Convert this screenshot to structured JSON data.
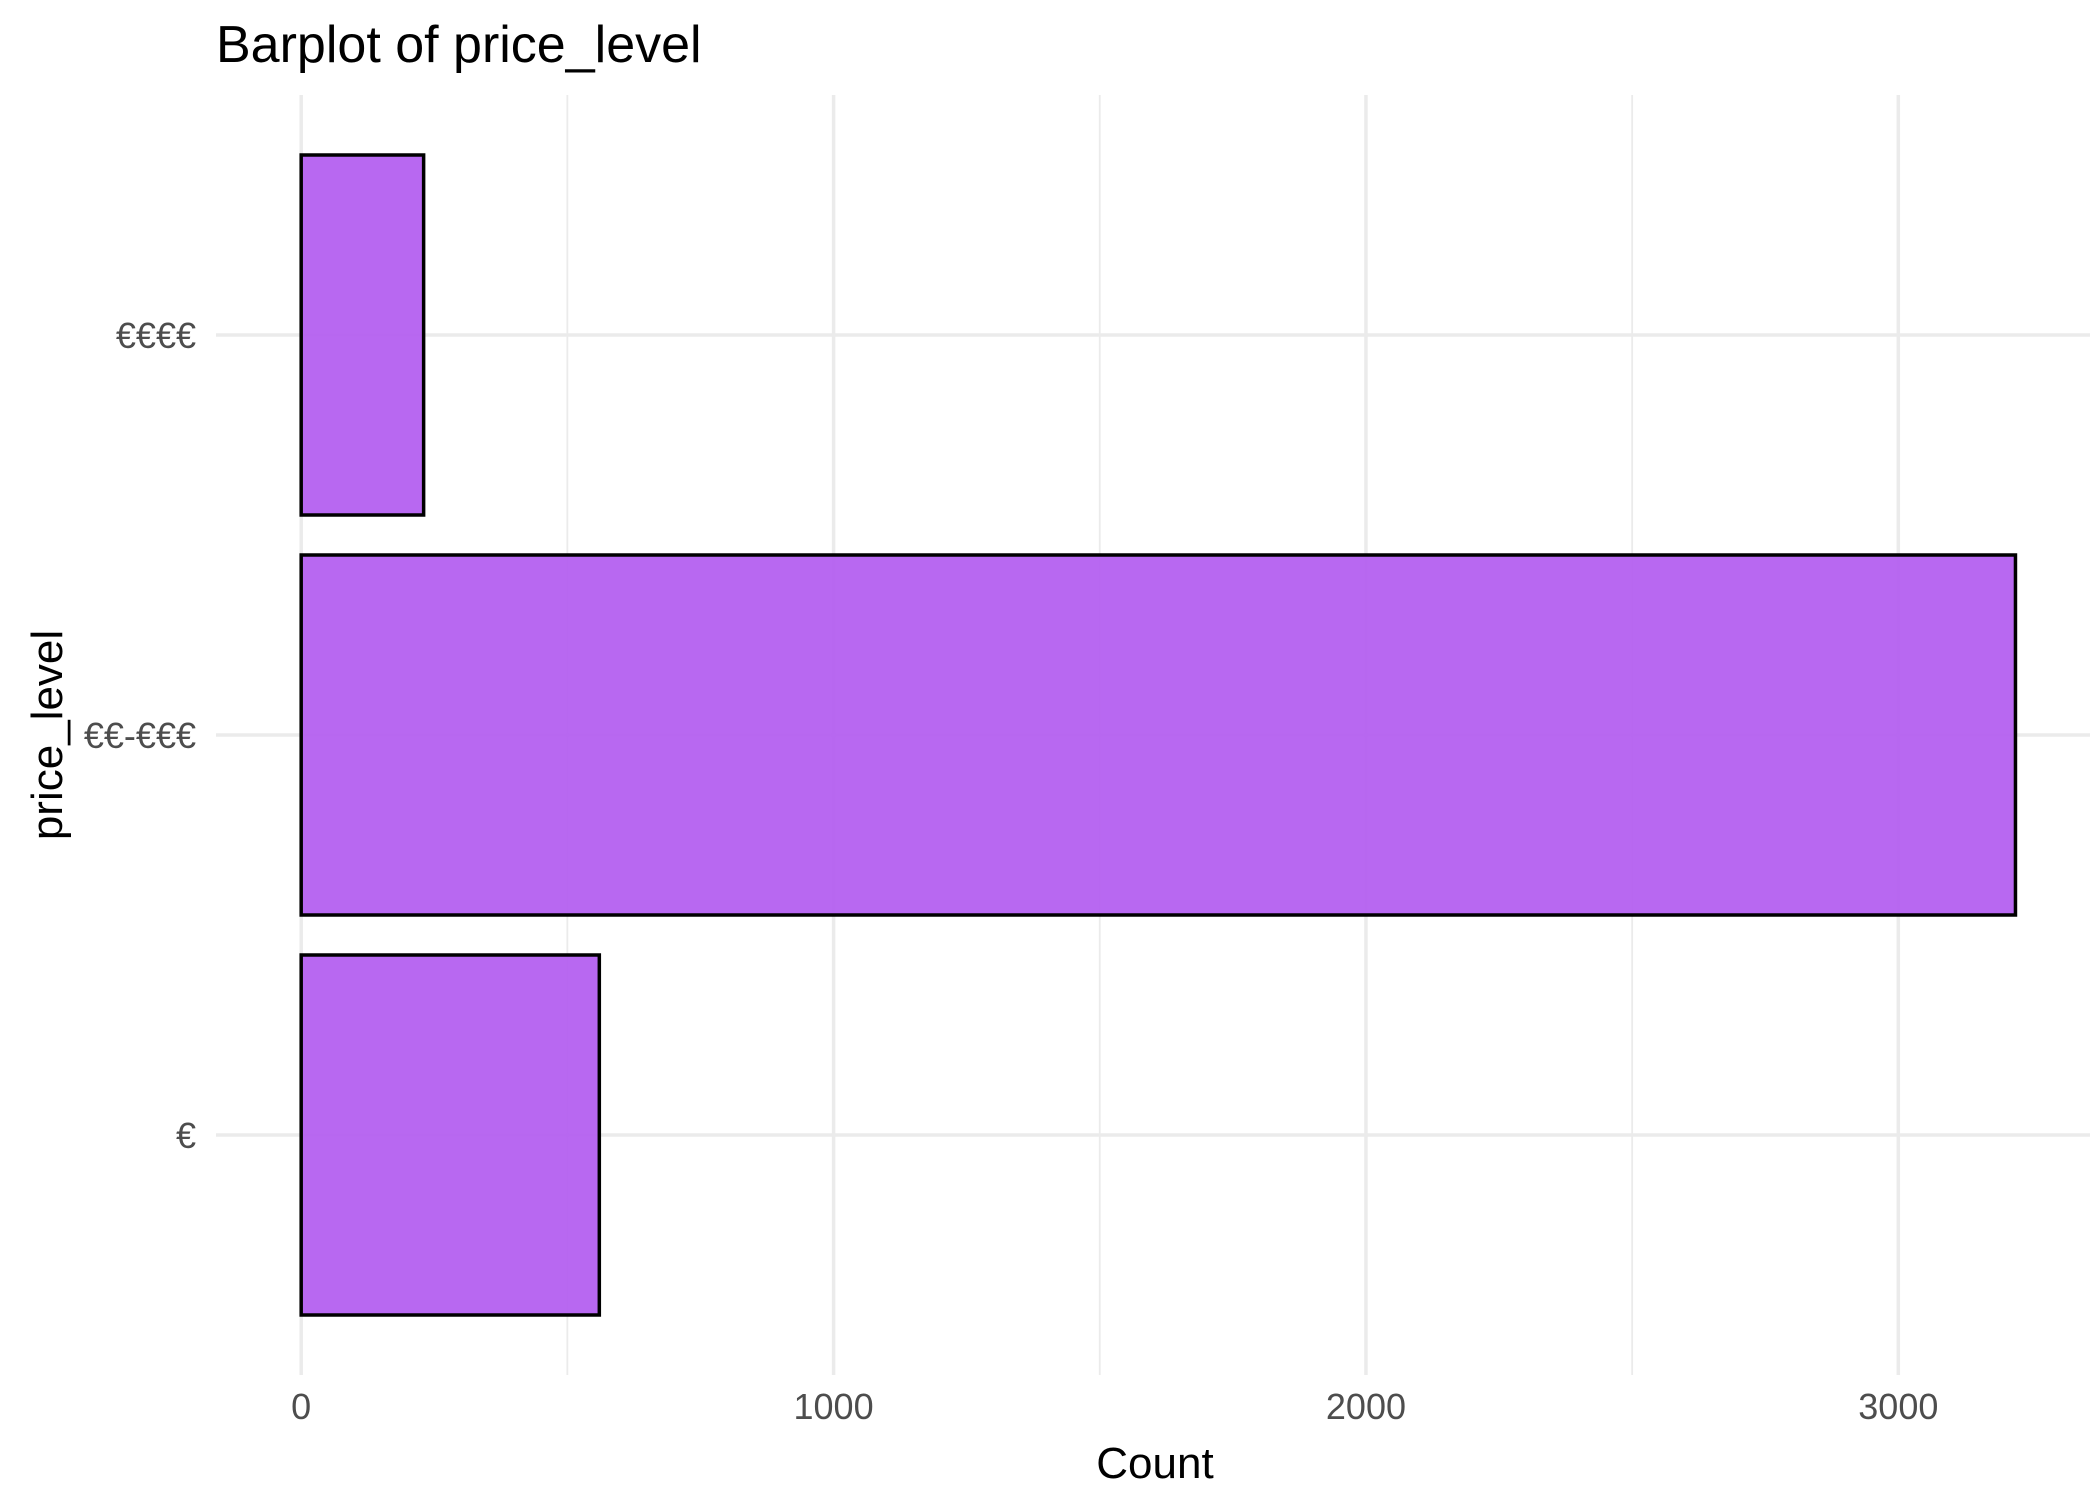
{
  "chart_data": {
    "type": "bar",
    "orientation": "horizontal",
    "title": "Barplot of price_level",
    "xlabel": "Count",
    "ylabel": "price_level",
    "categories": [
      "€",
      "€€-€€€",
      "€€€€"
    ],
    "values": [
      560,
      3220,
      230
    ],
    "xlim": [
      -160,
      3360
    ],
    "x_ticks": [
      0,
      1000,
      2000,
      3000
    ],
    "x_tick_labels": [
      "0",
      "1000",
      "2000",
      "3000"
    ],
    "x_minor_ticks": [
      500,
      1500,
      2500
    ],
    "grid": true,
    "legend": "none",
    "bar_color": "#b35cf0",
    "bar_outline": "#000000"
  }
}
